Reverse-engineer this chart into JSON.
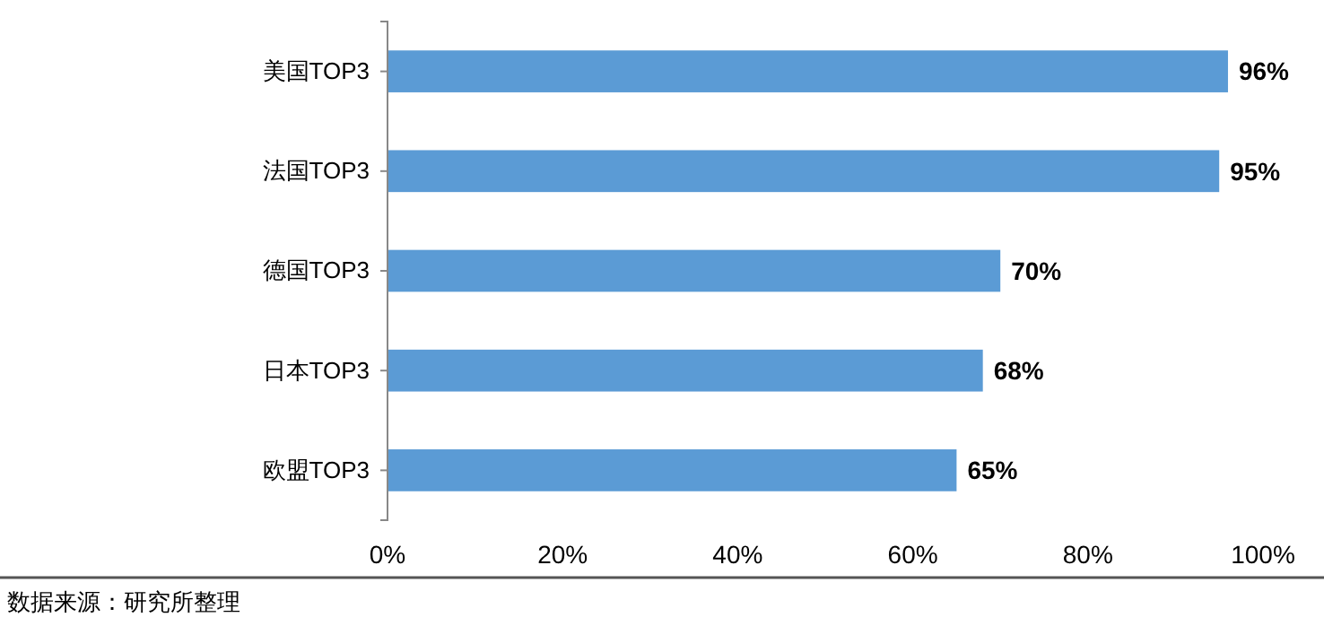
{
  "chart_data": {
    "type": "bar",
    "orientation": "horizontal",
    "categories": [
      "美国TOP3",
      "法国TOP3",
      "德国TOP3",
      "日本TOP3",
      "欧盟TOP3"
    ],
    "values": [
      96,
      95,
      70,
      68,
      65
    ],
    "value_labels": [
      "96%",
      "95%",
      "70%",
      "68%",
      "65%"
    ],
    "color": "#5b9bd5",
    "xlim": [
      0,
      100
    ],
    "xticks": [
      {
        "value": 0,
        "label": "0%"
      },
      {
        "value": 20,
        "label": "20%"
      },
      {
        "value": 40,
        "label": "40%"
      },
      {
        "value": 60,
        "label": "60%"
      },
      {
        "value": 80,
        "label": "80%"
      },
      {
        "value": 100,
        "label": "100%"
      }
    ],
    "grid": false,
    "annotations": [
      "数据来源：研究所整理"
    ]
  }
}
